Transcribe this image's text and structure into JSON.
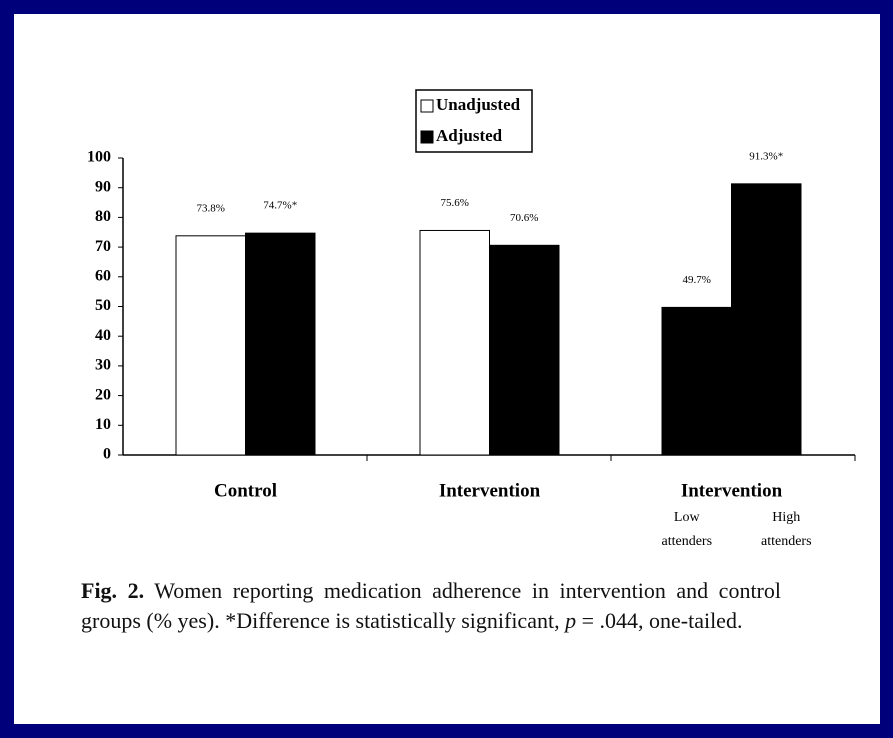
{
  "chart_data": {
    "type": "grouped-bar",
    "legend": [
      {
        "name": "Unadjusted",
        "color": "#ffffff"
      },
      {
        "name": "Adjusted",
        "color": "#000000"
      }
    ],
    "groups": [
      {
        "label": "Control",
        "values": [
          73.8,
          74.7
        ],
        "value_labels": [
          "73.8%",
          "74.7%*"
        ],
        "colors": [
          "#ffffff",
          "#000000"
        ]
      },
      {
        "label": "Intervention",
        "values": [
          75.6,
          70.6
        ],
        "value_labels": [
          "75.6%",
          "70.6%"
        ],
        "colors": [
          "#ffffff",
          "#000000"
        ]
      },
      {
        "label": "Intervention",
        "values": [
          49.7,
          91.3
        ],
        "value_labels": [
          "49.7%",
          "91.3%*"
        ],
        "colors": [
          "#000000",
          "#000000"
        ],
        "sublabels": [
          [
            "Low",
            "attenders"
          ],
          [
            "High",
            "attenders"
          ]
        ]
      }
    ],
    "ylim": [
      0,
      100
    ],
    "yticks": [
      0,
      10,
      20,
      30,
      40,
      50,
      60,
      70,
      80,
      90,
      100
    ]
  },
  "caption": {
    "label": "Fig. 2.",
    "parts": [
      "Women reporting medication adherence in intervention and control groups (% yes). *Difference is statistically significant, ",
      "p",
      " = .044, one-tailed."
    ]
  }
}
